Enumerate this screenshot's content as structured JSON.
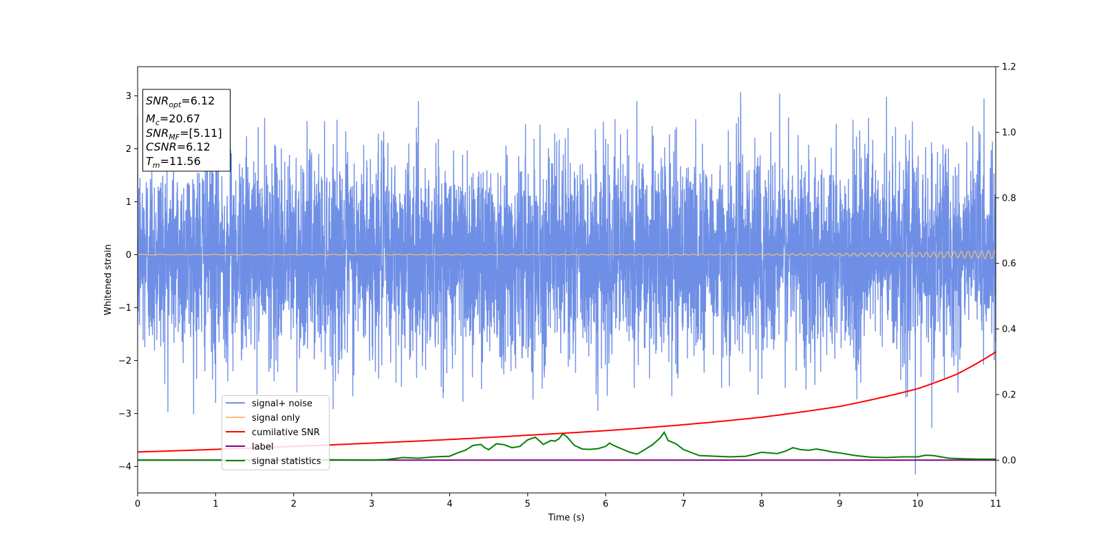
{
  "chart_data": {
    "type": "line",
    "xlabel": "Time (s)",
    "ylabel": "Whitened strain",
    "xlim": [
      0,
      11
    ],
    "ylim": [
      -4.5,
      3.55
    ],
    "y2lim": [
      -0.1,
      1.2
    ],
    "x_ticks": [
      "0",
      "1",
      "2",
      "3",
      "4",
      "5",
      "6",
      "7",
      "8",
      "9",
      "10",
      "11"
    ],
    "y_ticks": [
      "−4",
      "−3",
      "−2",
      "−1",
      "0",
      "1",
      "2",
      "3"
    ],
    "y2_ticks": [
      "0.0",
      "0.2",
      "0.4",
      "0.6",
      "0.8",
      "1.0",
      "1.2"
    ],
    "legend_placement": "lower-left",
    "annotation": {
      "snr_opt": {
        "var": "SNR",
        "sub": "opt",
        "value": "=6.12"
      },
      "mc": {
        "var": "M",
        "sub": "c",
        "value": "=20.67"
      },
      "snr_mf": {
        "var": "SNR",
        "sub": "MF",
        "value": "=[5.11]"
      },
      "csnr": {
        "var": "CSNR",
        "value": "=6.12"
      },
      "tm": {
        "var": "T",
        "sub": "m",
        "value": "=11.56"
      }
    },
    "series": [
      {
        "name": "signal+ noise",
        "axis": "left",
        "color": "#6f8fe6",
        "kind": "noise",
        "amplitude_sigma": 0.95,
        "peaks": [
          {
            "x": 3.6,
            "y": 2.9
          },
          {
            "x": 6.4,
            "y": 2.9
          },
          {
            "x": 7.73,
            "y": 3.07
          },
          {
            "x": 8.23,
            "y": 3.04
          },
          {
            "x": 9.6,
            "y": 2.98
          },
          {
            "x": 10.85,
            "y": 2.95
          },
          {
            "x": 5.9,
            "y": -2.95
          },
          {
            "x": 9.97,
            "y": -4.15
          },
          {
            "x": 10.18,
            "y": -3.27
          },
          {
            "x": 4.17,
            "y": -2.78
          },
          {
            "x": 1.0,
            "y": -2.8
          }
        ]
      },
      {
        "name": "signal only",
        "axis": "left",
        "color": "#f5c26b",
        "kind": "chirp",
        "amplitude_points": [
          [
            0,
            0.005
          ],
          [
            8,
            0.01
          ],
          [
            10,
            0.04
          ],
          [
            11,
            0.08
          ]
        ]
      },
      {
        "name": "cumilative SNR",
        "axis": "right",
        "color": "#ff0000",
        "x": [
          0,
          1,
          2,
          3,
          4,
          5,
          6,
          7,
          8,
          9,
          10,
          10.5,
          11
        ],
        "y": [
          0.025,
          0.033,
          0.042,
          0.052,
          0.063,
          0.076,
          0.09,
          0.108,
          0.131,
          0.164,
          0.218,
          0.262,
          0.33
        ]
      },
      {
        "name": "label",
        "axis": "right",
        "color": "#800080",
        "x": [
          0,
          11
        ],
        "y": [
          0.0,
          0.0
        ]
      },
      {
        "name": "signal statistics",
        "axis": "right",
        "color": "#008000",
        "x": [
          0,
          1,
          2,
          3,
          3.2,
          3.4,
          3.6,
          3.8,
          4.0,
          4.1,
          4.2,
          4.3,
          4.4,
          4.45,
          4.5,
          4.6,
          4.7,
          4.8,
          4.9,
          5.0,
          5.1,
          5.2,
          5.3,
          5.35,
          5.4,
          5.45,
          5.5,
          5.6,
          5.7,
          5.8,
          5.9,
          6.0,
          6.05,
          6.1,
          6.2,
          6.3,
          6.4,
          6.5,
          6.6,
          6.7,
          6.75,
          6.8,
          6.9,
          7.0,
          7.2,
          7.4,
          7.6,
          7.8,
          8.0,
          8.2,
          8.3,
          8.4,
          8.5,
          8.6,
          8.7,
          8.8,
          8.9,
          9.0,
          9.2,
          9.4,
          9.6,
          9.8,
          10.0,
          10.1,
          10.2,
          10.4,
          10.6,
          10.8,
          11.0
        ],
        "y": [
          0.0,
          0.0,
          0.002,
          0.0,
          0.002,
          0.008,
          0.006,
          0.01,
          0.012,
          0.022,
          0.03,
          0.045,
          0.048,
          0.038,
          0.032,
          0.05,
          0.047,
          0.038,
          0.042,
          0.062,
          0.07,
          0.048,
          0.06,
          0.058,
          0.065,
          0.08,
          0.072,
          0.045,
          0.034,
          0.033,
          0.035,
          0.042,
          0.052,
          0.045,
          0.035,
          0.025,
          0.018,
          0.032,
          0.047,
          0.068,
          0.085,
          0.06,
          0.05,
          0.032,
          0.014,
          0.012,
          0.01,
          0.012,
          0.024,
          0.02,
          0.027,
          0.038,
          0.032,
          0.03,
          0.034,
          0.03,
          0.025,
          0.022,
          0.014,
          0.009,
          0.008,
          0.01,
          0.01,
          0.015,
          0.014,
          0.006,
          0.004,
          0.003,
          0.003
        ]
      }
    ]
  }
}
